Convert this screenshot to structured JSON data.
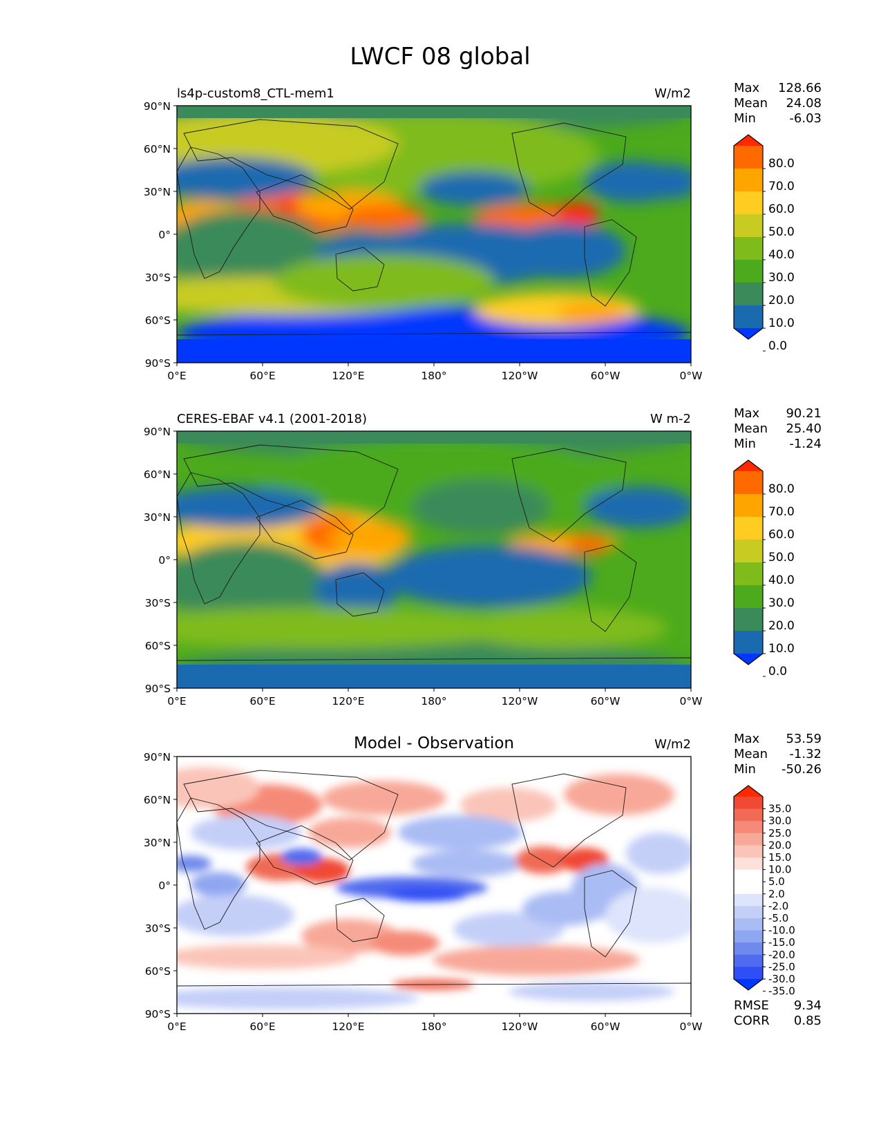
{
  "title": "LWCF 08 global",
  "lat_ticks": [
    "90°N",
    "60°N",
    "30°N",
    "0°",
    "30°S",
    "60°S",
    "90°S"
  ],
  "lon_ticks": [
    "0°E",
    "60°E",
    "120°E",
    "180°",
    "120°W",
    "60°W",
    "0°W"
  ],
  "panels": [
    {
      "left_title": "ls4p-custom8_CTL-mem1",
      "center_title": "",
      "units": "W/m2",
      "stats": [
        {
          "label": "Max",
          "value": "128.66"
        },
        {
          "label": "Mean",
          "value": "24.08"
        },
        {
          "label": "Min",
          "value": "-6.03"
        }
      ],
      "colorbar": {
        "labels": [
          "80.0",
          "70.0",
          "60.0",
          "50.0",
          "40.0",
          "30.0",
          "20.0",
          "10.0",
          "0.0"
        ],
        "colors": [
          "#ff2a00",
          "#ff6a00",
          "#ffa500",
          "#ffcc22",
          "#c8cc22",
          "#7fbb1a",
          "#4caa1c",
          "#3a8a5a",
          "#1a6ab0",
          "#0037ff"
        ]
      },
      "footer_stats": []
    },
    {
      "left_title": "CERES-EBAF v4.1 (2001-2018)",
      "center_title": "",
      "units": "W m-2",
      "stats": [
        {
          "label": "Max",
          "value": "90.21"
        },
        {
          "label": "Mean",
          "value": "25.40"
        },
        {
          "label": "Min",
          "value": "-1.24"
        }
      ],
      "colorbar": {
        "labels": [
          "80.0",
          "70.0",
          "60.0",
          "50.0",
          "40.0",
          "30.0",
          "20.0",
          "10.0",
          "0.0"
        ],
        "colors": [
          "#ff2a00",
          "#ff6a00",
          "#ffa500",
          "#ffcc22",
          "#c8cc22",
          "#7fbb1a",
          "#4caa1c",
          "#3a8a5a",
          "#1a6ab0",
          "#0037ff"
        ]
      },
      "footer_stats": []
    },
    {
      "left_title": "",
      "center_title": "Model - Observation",
      "units": "W/m2",
      "stats": [
        {
          "label": "Max",
          "value": "53.59"
        },
        {
          "label": "Mean",
          "value": "-1.32"
        },
        {
          "label": "Min",
          "value": "-50.26"
        }
      ],
      "colorbar": {
        "labels": [
          "35.0",
          "30.0",
          "25.0",
          "20.0",
          "15.0",
          "10.0",
          "5.0",
          "2.0",
          "-2.0",
          "-5.0",
          "-10.0",
          "-15.0",
          "-20.0",
          "-25.0",
          "-30.0",
          "-35.0"
        ],
        "colors": [
          "#ff2a00",
          "#f04a35",
          "#f06a55",
          "#f58a78",
          "#f8a898",
          "#fbc4b8",
          "#fde0d8",
          "#ffffff",
          "#ffffff",
          "#dde4fb",
          "#c4cff8",
          "#aabcf4",
          "#8fa6f0",
          "#6f8aec",
          "#4f6bee",
          "#2f4ef5",
          "#0037ff"
        ]
      },
      "footer_stats": [
        {
          "label": "RMSE",
          "value": "9.34"
        },
        {
          "label": "CORR",
          "value": "0.85"
        }
      ]
    }
  ]
}
